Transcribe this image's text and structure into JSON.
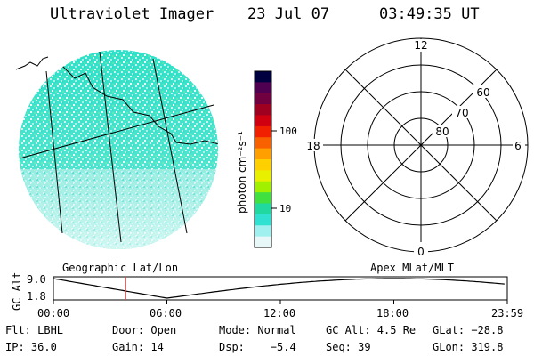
{
  "header": {
    "instrument": "Ultraviolet Imager",
    "date": "23 Jul 07",
    "time": "03:49:35 UT"
  },
  "colorbar": {
    "label": "photon cm⁻²s⁻¹",
    "ticks": [
      "100",
      "10"
    ],
    "colors": [
      "#000040",
      "#500050",
      "#700040",
      "#a00020",
      "#d00010",
      "#f02000",
      "#f86000",
      "#ffa000",
      "#ffd000",
      "#e8f000",
      "#a0f000",
      "#40e040",
      "#20d8a0",
      "#30e0d0",
      "#a0f0f0",
      "#e8f8f8"
    ]
  },
  "left_map": {
    "label": "Geographic Lat/Lon",
    "fill_color": "#30e0c8",
    "light_color": "#c8f0f0"
  },
  "polar": {
    "label": "Apex MLat/MLT",
    "mlt_labels": [
      "12",
      "18",
      "6",
      "0"
    ],
    "lat_labels": [
      "60",
      "70",
      "80"
    ]
  },
  "timeline": {
    "ylabel": "GC Alt",
    "ytick_top": "9.0",
    "ytick_bottom": "1.8",
    "xticks": [
      "00:00",
      "06:00",
      "12:00",
      "18:00",
      "23:59"
    ],
    "marker_time": "03:49",
    "marker_color": "#e04040"
  },
  "info": {
    "flt": "Flt: LBHL",
    "door": "Door: Open",
    "mode": "Mode: Normal",
    "gcalt": "GC Alt: 4.5 Re",
    "glat": "GLat: −28.8",
    "ip": "IP: 36.0",
    "gain": "Gain: 14",
    "dsp": "Dsp:    −5.4",
    "seq": "Seq: 39",
    "glon": "GLon: 319.8"
  }
}
